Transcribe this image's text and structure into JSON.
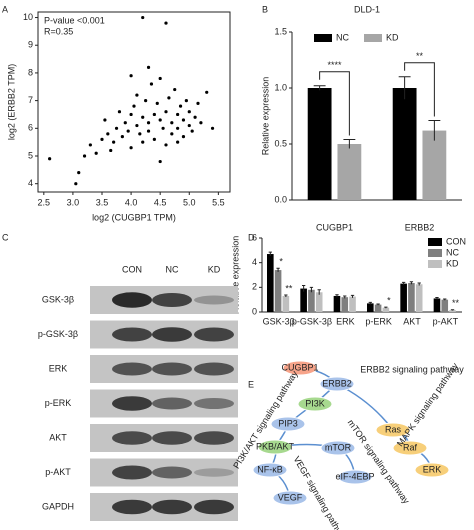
{
  "panel_labels": [
    "A",
    "B",
    "C",
    "D",
    "E"
  ],
  "chart_data": [
    {
      "type": "scatter",
      "annotations": [
        "P-value <0.001",
        "R=0.35"
      ],
      "x_label": "log2 (CUGBP1 TPM)",
      "y_label": "log2 (ERBB2 TPM)",
      "x": [
        2.6,
        3.05,
        3.1,
        3.2,
        3.3,
        3.4,
        3.5,
        3.55,
        3.6,
        3.7,
        3.75,
        3.8,
        3.85,
        3.9,
        3.95,
        4.0,
        4.0,
        4.05,
        4.1,
        4.1,
        4.15,
        4.2,
        4.2,
        4.25,
        4.3,
        4.3,
        4.35,
        4.4,
        4.4,
        4.45,
        4.5,
        4.5,
        4.55,
        4.6,
        4.6,
        4.65,
        4.7,
        4.7,
        4.75,
        4.8,
        4.8,
        4.85,
        4.9,
        4.9,
        4.95,
        5.0,
        5.0,
        5.05,
        5.1,
        5.15,
        5.2,
        5.3,
        5.4,
        4.2,
        4.6,
        3.65,
        4.0,
        4.3,
        4.5,
        4.8
      ],
      "values": [
        4.9,
        4.0,
        4.4,
        5.0,
        5.4,
        5.1,
        5.6,
        6.3,
        5.8,
        5.5,
        6.0,
        6.6,
        5.7,
        6.2,
        5.9,
        6.5,
        5.3,
        6.8,
        6.1,
        7.2,
        5.8,
        6.4,
        5.5,
        7.0,
        6.2,
        5.9,
        7.6,
        6.5,
        5.6,
        6.9,
        6.3,
        7.8,
        6.0,
        6.6,
        5.4,
        7.1,
        6.2,
        5.8,
        7.4,
        6.5,
        6.0,
        6.8,
        6.3,
        5.7,
        7.0,
        6.1,
        6.6,
        5.9,
        6.4,
        6.9,
        6.2,
        7.3,
        6.0,
        10.0,
        9.8,
        5.2,
        7.9,
        8.2,
        4.8,
        5.5
      ],
      "color": "#000000",
      "xlim": [
        2.4,
        5.7
      ],
      "xticks": [
        2.5,
        {
          "value": 3,
          "label": "3.0"
        },
        3.5,
        {
          "value": 4,
          "label": "4.0"
        },
        4.5,
        {
          "value": 5,
          "label": "5.0"
        },
        5.5
      ],
      "ylim": [
        3.7,
        10.2
      ],
      "yticks": [
        4,
        5,
        6,
        7,
        8,
        9,
        10
      ]
    },
    {
      "type": "bar",
      "title": "DLD-1",
      "y_label": "Relative expression",
      "categories": [
        "CUGBP1",
        "ERBB2"
      ],
      "series": [
        {
          "name": "NC",
          "color": "#000000",
          "values": [
            1.0,
            1.0
          ],
          "errors": [
            0.02,
            0.1
          ],
          "significance": [
            null,
            null
          ]
        },
        {
          "name": "KD",
          "color": "#a6a6a6",
          "values": [
            0.5,
            0.62
          ],
          "errors": [
            0.04,
            0.09
          ],
          "significance": [
            "****",
            "**"
          ]
        }
      ],
      "ylim": [
        0,
        1.5
      ],
      "yticks": [
        {
          "value": 0,
          "label": "0.0"
        },
        0.5,
        {
          "value": 1,
          "label": "1.0"
        },
        1.5
      ],
      "legend": "top"
    },
    {
      "type": "bar",
      "y_label": "Relative expression",
      "categories": [
        "GSK-3β",
        "p-GSK-3β",
        "ERK",
        "p-ERK",
        "AKT",
        "p-AKT"
      ],
      "series": [
        {
          "name": "CON",
          "color": "#000000",
          "values": [
            4.7,
            1.9,
            1.3,
            0.7,
            2.3,
            1.1
          ],
          "errors": [
            0.15,
            0.25,
            0.1,
            0.08,
            0.1,
            0.08
          ],
          "significance": [
            null,
            null,
            null,
            null,
            null,
            null
          ]
        },
        {
          "name": "NC",
          "color": "#7f7f7f",
          "values": [
            3.4,
            1.8,
            1.2,
            0.6,
            2.35,
            1.0
          ],
          "errors": [
            0.15,
            0.2,
            0.1,
            0.05,
            0.1,
            0.05
          ],
          "significance": [
            "*",
            null,
            null,
            null,
            null,
            null
          ]
        },
        {
          "name": "KD",
          "color": "#bfbfbf",
          "values": [
            1.3,
            1.6,
            1.25,
            0.35,
            2.25,
            0.15
          ],
          "errors": [
            0.08,
            0.2,
            0.1,
            0.05,
            0.1,
            0.03
          ],
          "significance": [
            "**",
            null,
            null,
            "*",
            null,
            "**"
          ]
        }
      ],
      "ylim": [
        0,
        6
      ],
      "yticks": [
        0,
        2,
        4,
        6
      ],
      "legend": "right"
    }
  ],
  "blot": {
    "columns": [
      "CON",
      "NC",
      "KD"
    ],
    "rows": [
      "GSK-3β",
      "p-GSK-3β",
      "ERK",
      "p-ERK",
      "AKT",
      "p-AKT",
      "GAPDH"
    ]
  },
  "pathway": {
    "nodes": [
      "CUGBP1",
      "ERBB2",
      "PI3K",
      "PIP3",
      "PKB/AKT",
      "mTOR",
      "NF-κB",
      "VEGF",
      "eIF-4EBP",
      "Ras",
      "Raf",
      "ERK"
    ],
    "pathways": [
      "ERBB2 signaling pathway",
      "PI3K/AKT signaling pathway",
      "MAPK signaling pathway",
      "mTOR signaling pathway",
      "VEGF signaling pathway"
    ]
  }
}
